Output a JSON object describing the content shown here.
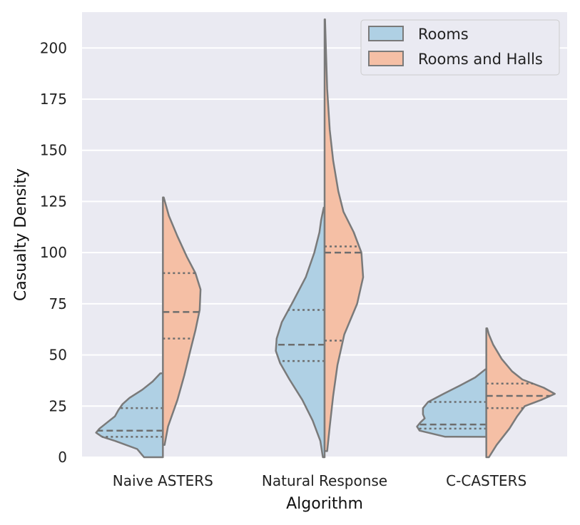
{
  "chart_data": {
    "type": "violin",
    "split": true,
    "xlabel": "Algorithm",
    "ylabel": "Casualty Density",
    "ylim": [
      0,
      217
    ],
    "yticks": [
      0,
      25,
      50,
      75,
      100,
      125,
      150,
      175,
      200
    ],
    "ytick_labels": [
      "0",
      "25",
      "50",
      "75",
      "100",
      "125",
      "150",
      "175",
      "200"
    ],
    "grid": true,
    "background": "#eaeaf2",
    "legend": {
      "location": "top-right",
      "entries": [
        {
          "name": "Rooms",
          "color": "#afd0e4"
        },
        {
          "name": "Rooms and Halls",
          "color": "#f5bfa5"
        }
      ]
    },
    "categories": [
      "Naive ASTERS",
      "Natural Response",
      "C-CASTERS"
    ],
    "outline_color": "#7a7a7a",
    "series": [
      {
        "name": "Rooms",
        "side": "left",
        "color": "#afd0e4",
        "violins": [
          {
            "min": 0,
            "max": 41,
            "q1": 10,
            "median": 13,
            "q3": 24,
            "profile": [
              [
                0,
                0.22
              ],
              [
                4,
                0.3
              ],
              [
                8,
                0.56
              ],
              [
                10,
                0.71
              ],
              [
                12,
                0.78
              ],
              [
                14,
                0.74
              ],
              [
                17,
                0.65
              ],
              [
                20,
                0.56
              ],
              [
                23,
                0.52
              ],
              [
                26,
                0.47
              ],
              [
                29,
                0.39
              ],
              [
                33,
                0.24
              ],
              [
                37,
                0.12
              ],
              [
                41,
                0.03
              ]
            ]
          },
          {
            "min": 0,
            "max": 122,
            "q1": 47,
            "median": 55,
            "q3": 72,
            "profile": [
              [
                0,
                0.02
              ],
              [
                8,
                0.05
              ],
              [
                18,
                0.14
              ],
              [
                28,
                0.26
              ],
              [
                38,
                0.41
              ],
              [
                46,
                0.52
              ],
              [
                52,
                0.57
              ],
              [
                58,
                0.56
              ],
              [
                66,
                0.5
              ],
              [
                76,
                0.37
              ],
              [
                88,
                0.22
              ],
              [
                100,
                0.12
              ],
              [
                110,
                0.06
              ],
              [
                116,
                0.04
              ],
              [
                122,
                0.01
              ]
            ]
          },
          {
            "min": 10,
            "max": 43,
            "q1": 14,
            "median": 16,
            "q3": 27,
            "profile": [
              [
                10,
                0.48
              ],
              [
                13,
                0.78
              ],
              [
                15,
                0.81
              ],
              [
                17,
                0.77
              ],
              [
                19,
                0.72
              ],
              [
                21,
                0.74
              ],
              [
                24,
                0.74
              ],
              [
                27,
                0.68
              ],
              [
                31,
                0.5
              ],
              [
                35,
                0.31
              ],
              [
                39,
                0.13
              ],
              [
                43,
                0.01
              ]
            ]
          }
        ]
      },
      {
        "name": "Rooms and Halls",
        "side": "right",
        "color": "#f5bfa5",
        "violins": [
          {
            "min": 6,
            "max": 127,
            "q1": 58,
            "median": 71,
            "q3": 90,
            "profile": [
              [
                6,
                0.02
              ],
              [
                15,
                0.06
              ],
              [
                28,
                0.17
              ],
              [
                40,
                0.25
              ],
              [
                52,
                0.32
              ],
              [
                62,
                0.38
              ],
              [
                72,
                0.43
              ],
              [
                82,
                0.44
              ],
              [
                90,
                0.38
              ],
              [
                98,
                0.28
              ],
              [
                108,
                0.17
              ],
              [
                118,
                0.07
              ],
              [
                124,
                0.03
              ],
              [
                127,
                0.01
              ]
            ]
          },
          {
            "min": 3,
            "max": 214,
            "q1": 57,
            "median": 100,
            "q3": 103,
            "profile": [
              [
                3,
                0.03
              ],
              [
                15,
                0.06
              ],
              [
                30,
                0.1
              ],
              [
                45,
                0.15
              ],
              [
                60,
                0.23
              ],
              [
                75,
                0.38
              ],
              [
                88,
                0.45
              ],
              [
                100,
                0.43
              ],
              [
                110,
                0.34
              ],
              [
                120,
                0.22
              ],
              [
                130,
                0.16
              ],
              [
                145,
                0.1
              ],
              [
                160,
                0.06
              ],
              [
                180,
                0.03
              ],
              [
                200,
                0.015
              ],
              [
                214,
                0.005
              ]
            ]
          },
          {
            "min": 0,
            "max": 63,
            "q1": 24,
            "median": 30,
            "q3": 36,
            "profile": [
              [
                0,
                0.03
              ],
              [
                6,
                0.12
              ],
              [
                14,
                0.27
              ],
              [
                20,
                0.36
              ],
              [
                25,
                0.45
              ],
              [
                28,
                0.64
              ],
              [
                31,
                0.8
              ],
              [
                34,
                0.67
              ],
              [
                38,
                0.42
              ],
              [
                42,
                0.3
              ],
              [
                48,
                0.18
              ],
              [
                55,
                0.08
              ],
              [
                60,
                0.03
              ],
              [
                63,
                0.01
              ]
            ]
          }
        ]
      }
    ]
  }
}
